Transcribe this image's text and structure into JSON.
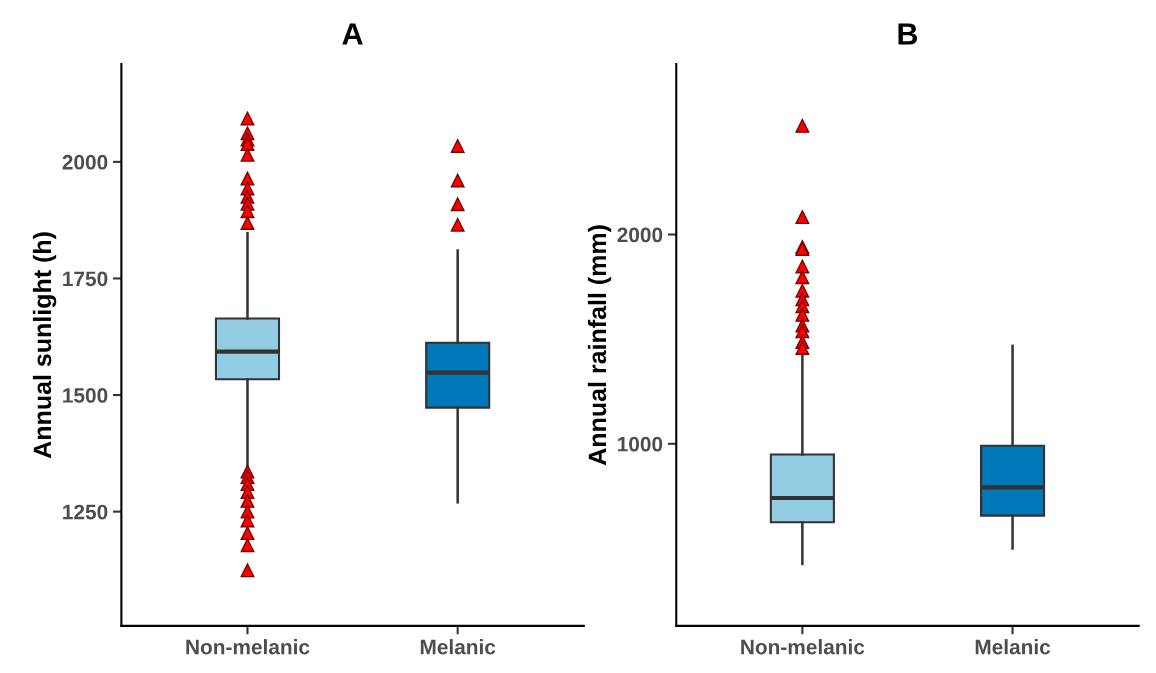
{
  "chart_data": [
    {
      "type": "box",
      "title": "A",
      "ylabel": "Annual sunlight (h)",
      "categories": [
        "Non-melanic",
        "Melanic"
      ],
      "colors": [
        "#92cde3",
        "#0077b6"
      ],
      "marker": "triangle",
      "grid": false,
      "ylim": [
        1005,
        2210
      ],
      "yticks": [
        1250,
        1500,
        1750,
        2000
      ],
      "boxes": [
        {
          "low": 1344,
          "q1": 1534,
          "median": 1593,
          "q3": 1664,
          "high": 1847,
          "outliers": [
            2093,
            2061,
            2048,
            2038,
            2015,
            1964,
            1943,
            1925,
            1910,
            1894,
            1869,
            1336,
            1324,
            1309,
            1292,
            1273,
            1250,
            1231,
            1204,
            1178,
            1124
          ]
        },
        {
          "low": 1270,
          "q1": 1473,
          "median": 1548,
          "q3": 1612,
          "high": 1810,
          "outliers": [
            2034,
            1960,
            1909,
            1865
          ]
        }
      ]
    },
    {
      "type": "box",
      "title": "B",
      "ylabel": "Annual rainfall (mm)",
      "categories": [
        "Non-melanic",
        "Melanic"
      ],
      "colors": [
        "#92cde3",
        "#0077b6"
      ],
      "marker": "triangle",
      "grid": false,
      "ylim": [
        130,
        2815
      ],
      "yticks": [
        1000,
        2000
      ],
      "boxes": [
        {
          "low": 426,
          "q1": 625,
          "median": 741,
          "q3": 949,
          "high": 1444,
          "outliers": [
            2519,
            2083,
            1940,
            1931,
            1847,
            1796,
            1731,
            1690,
            1657,
            1616,
            1565,
            1537,
            1486,
            1458
          ]
        },
        {
          "low": 500,
          "q1": 657,
          "median": 792,
          "q3": 991,
          "high": 1468
        }
      ]
    }
  ]
}
